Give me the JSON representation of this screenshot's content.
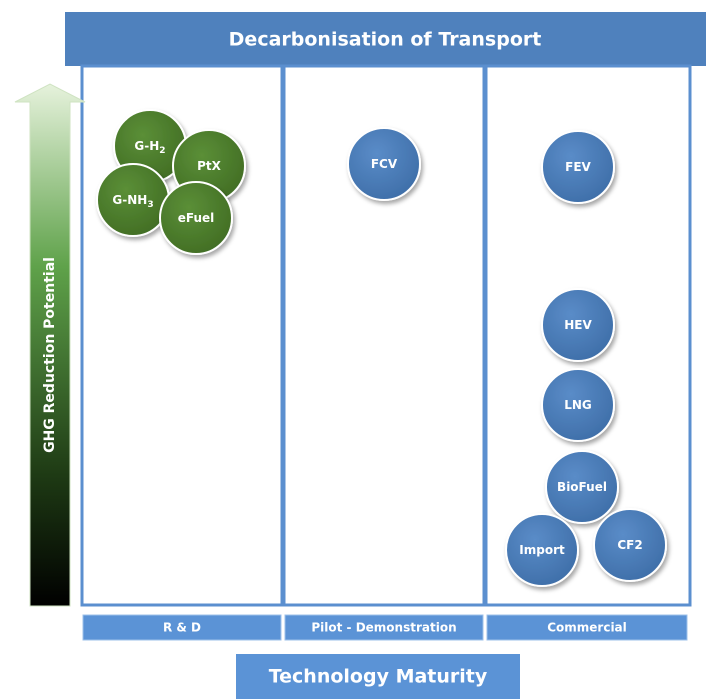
{
  "header": {
    "title": "Decarbonisation of Transport"
  },
  "y_axis_label": "GHG Reduction Potential",
  "x_axis_label": "Technology Maturity",
  "columns": [
    "R & D",
    "Pilot - Demonstration",
    "Commercial"
  ],
  "nodes": [
    {
      "label": "G-H",
      "sub": "2"
    },
    {
      "label": "PtX"
    },
    {
      "label": "G-NH",
      "sub": "3"
    },
    {
      "label": "eFuel"
    },
    {
      "label": "FCV"
    },
    {
      "label": "FEV"
    },
    {
      "label": "HEV"
    },
    {
      "label": "LNG"
    },
    {
      "label": "BioFuel"
    },
    {
      "label": "Import"
    },
    {
      "label": "CF2"
    }
  ]
}
